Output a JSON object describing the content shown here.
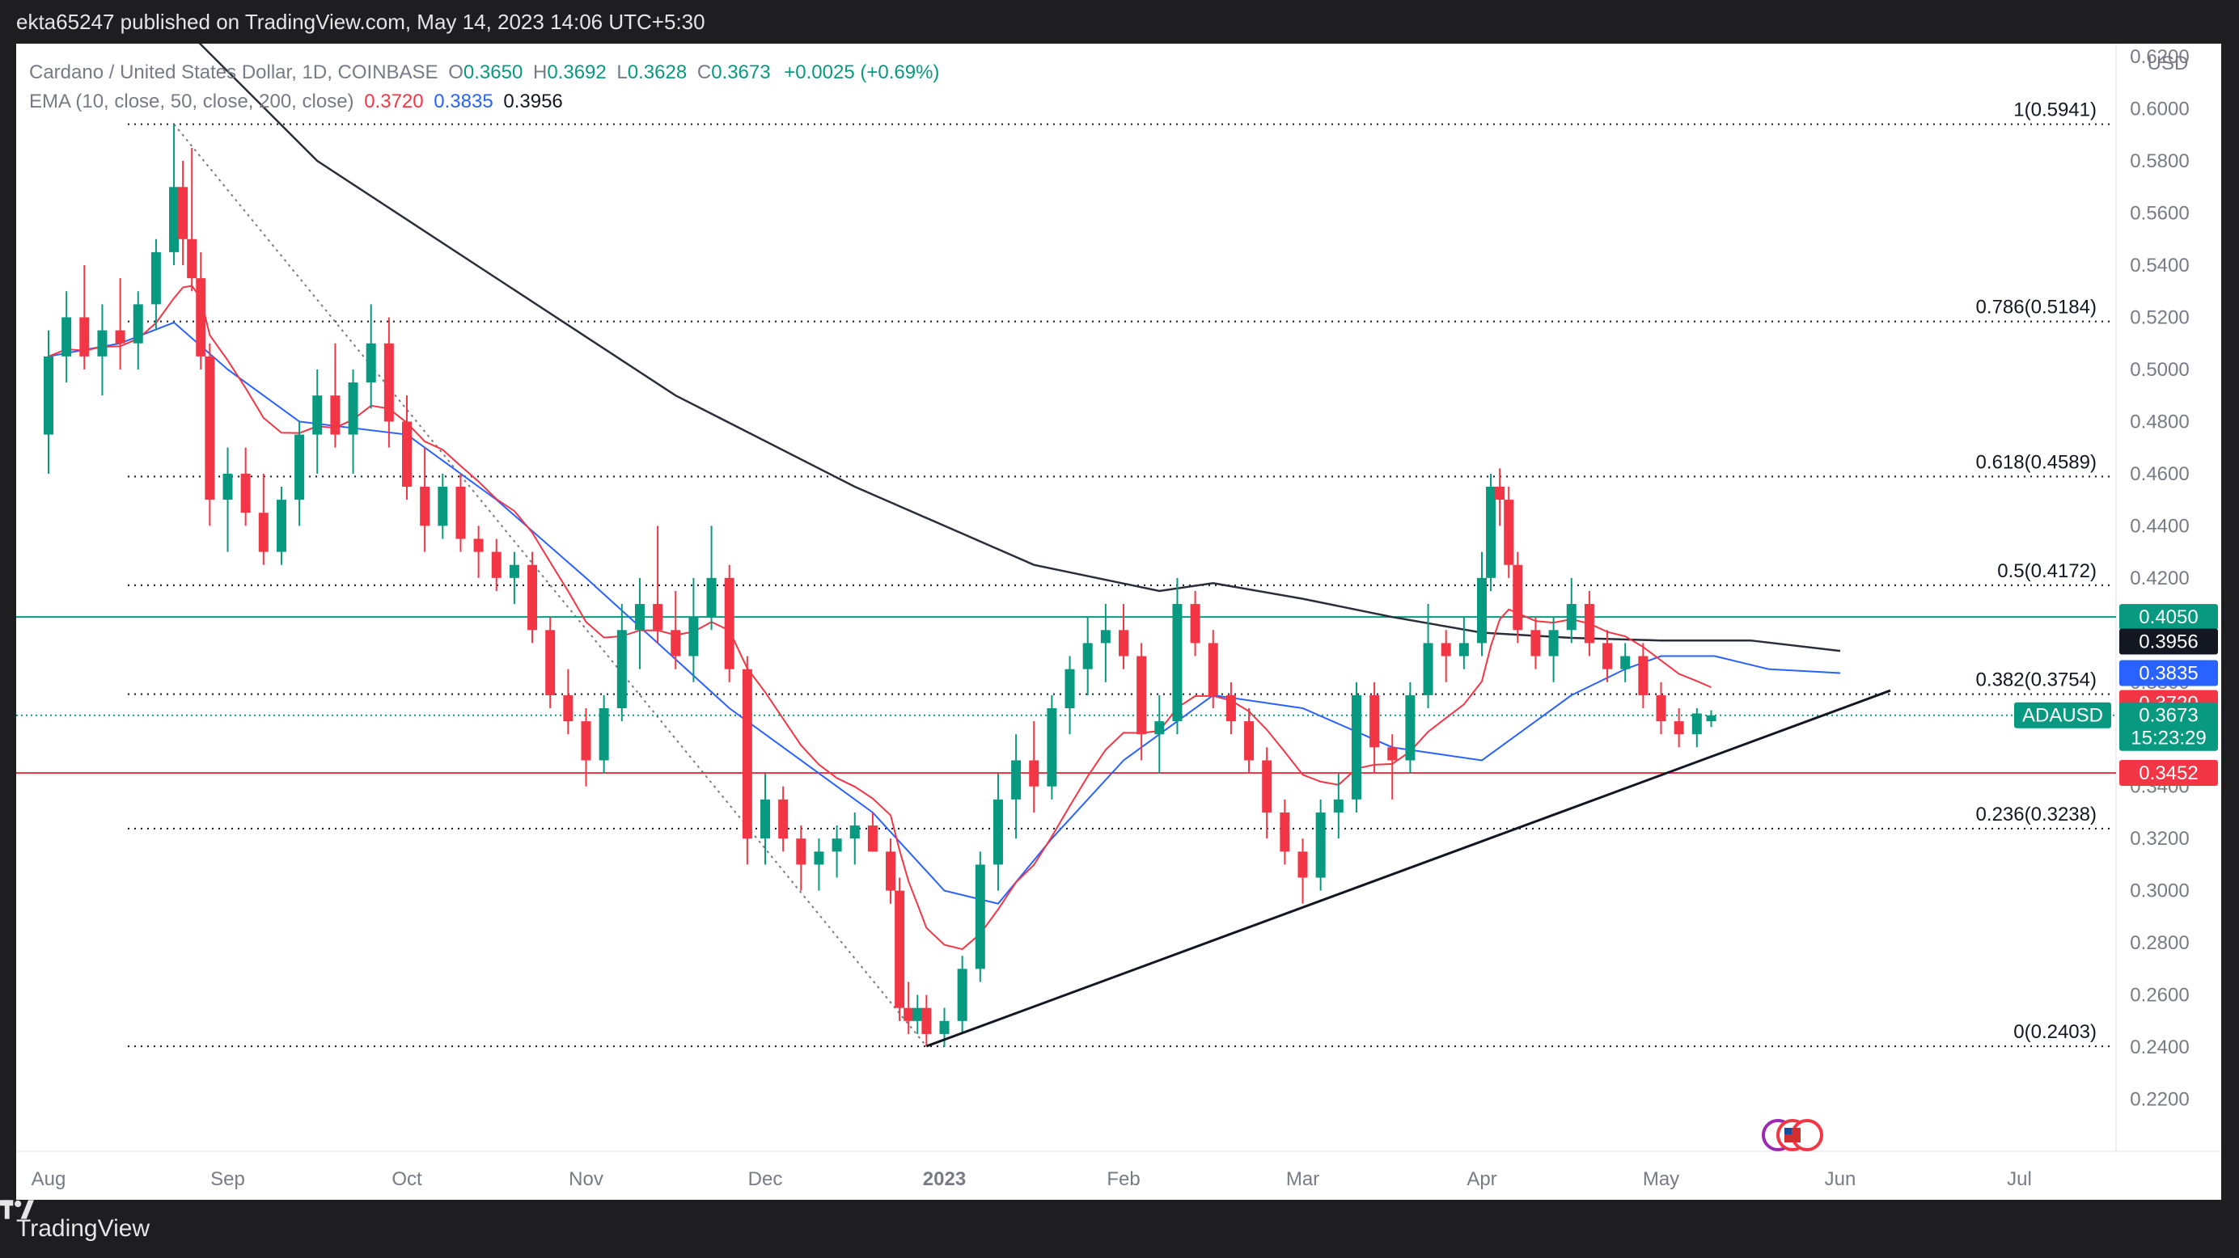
{
  "header": {
    "text": "ekta65247 published on TradingView.com, May 14, 2023 14:06 UTC+5:30"
  },
  "footer": {
    "brand": "TradingView"
  },
  "legend": {
    "symbol": "Cardano / United States Dollar, 1D, COINBASE",
    "open_label": "O",
    "open": "0.3650",
    "high_label": "H",
    "high": "0.3692",
    "low_label": "L",
    "low": "0.3628",
    "close_label": "C",
    "close": "0.3673",
    "change": "+0.0025 (+0.69%)",
    "ema_label": "EMA (10, close, 50, close, 200, close)",
    "ema10": "0.3720",
    "ema50": "0.3835",
    "ema200": "0.3956"
  },
  "colors": {
    "up": "#089981",
    "down": "#f23645",
    "ema10": "#f23645",
    "ema50": "#2962ff",
    "ema200": "#2a2e39",
    "support": "#f23645",
    "resistance": "#089981"
  },
  "chart_data": {
    "type": "candlestick",
    "currency": "USD",
    "y_ticks": [
      "0.6200",
      "0.6000",
      "0.5800",
      "0.5600",
      "0.5400",
      "0.5200",
      "0.5000",
      "0.4800",
      "0.4600",
      "0.4400",
      "0.4200",
      "0.4000",
      "0.3800",
      "0.3600",
      "0.3400",
      "0.3200",
      "0.3000",
      "0.2800",
      "0.2600",
      "0.2400",
      "0.2200"
    ],
    "ylim": [
      0.2,
      0.625
    ],
    "x_ticks": [
      "Aug",
      "Sep",
      "Oct",
      "Nov",
      "Dec",
      "2023",
      "Feb",
      "Mar",
      "Apr",
      "May",
      "Jun",
      "Jul"
    ],
    "fib_levels": [
      {
        "label": "1(0.5941)",
        "value": 0.5941
      },
      {
        "label": "0.786(0.5184)",
        "value": 0.5184
      },
      {
        "label": "0.618(0.4589)",
        "value": 0.4589
      },
      {
        "label": "0.5(0.4172)",
        "value": 0.4172
      },
      {
        "label": "0.382(0.3754)",
        "value": 0.3754
      },
      {
        "label": "0.236(0.3238)",
        "value": 0.3238
      },
      {
        "label": "0(0.2403)",
        "value": 0.2403
      }
    ],
    "horizontal_lines": [
      {
        "value": 0.405,
        "label": "0.4050",
        "kind": "resistance"
      },
      {
        "value": 0.3452,
        "label": "0.3452",
        "kind": "support"
      }
    ],
    "price_tags": [
      {
        "label": "0.4050",
        "value": 0.405,
        "color": "#089981"
      },
      {
        "label": "0.3956",
        "value": 0.3956,
        "color": "#131722"
      },
      {
        "label": "0.3835",
        "value": 0.3835,
        "color": "#2962ff"
      },
      {
        "label": "0.3720",
        "value": 0.372,
        "color": "#f23645"
      },
      {
        "label": "0.3452",
        "value": 0.3452,
        "color": "#f23645"
      }
    ],
    "last_price": {
      "symbol": "ADAUSD",
      "price": "0.3673",
      "countdown": "15:23:29",
      "value": 0.3673
    },
    "trendline": {
      "from_month": 4.9,
      "from_value": 0.2403,
      "to_month": 10.28,
      "to_value": 0.3768
    },
    "ema200": {
      "x": [
        0.7,
        1.5,
        2.5,
        3.5,
        4.5,
        5.5,
        6.2,
        6.5,
        7,
        7.5,
        8,
        8.5,
        9,
        9.5,
        10.0
      ],
      "y": [
        0.635,
        0.58,
        0.535,
        0.49,
        0.455,
        0.425,
        0.415,
        0.418,
        0.412,
        0.405,
        0.399,
        0.397,
        0.396,
        0.396,
        0.392
      ]
    },
    "ema50": {
      "x": [
        0,
        0.4,
        0.7,
        1,
        1.4,
        2,
        2.5,
        3,
        3.4,
        3.8,
        4.2,
        4.6,
        5,
        5.3,
        5.6,
        6,
        6.5,
        7,
        7.5,
        8,
        8.5,
        8.8,
        9,
        9.3,
        9.6,
        10.0
      ],
      "y": [
        0.505,
        0.51,
        0.518,
        0.5,
        0.48,
        0.475,
        0.45,
        0.42,
        0.395,
        0.37,
        0.35,
        0.33,
        0.3,
        0.295,
        0.32,
        0.35,
        0.375,
        0.37,
        0.355,
        0.35,
        0.375,
        0.385,
        0.39,
        0.39,
        0.385,
        0.3835
      ]
    },
    "candles": [
      {
        "m": 0.0,
        "o": 0.475,
        "h": 0.515,
        "l": 0.46,
        "c": 0.505
      },
      {
        "m": 0.1,
        "o": 0.505,
        "h": 0.53,
        "l": 0.495,
        "c": 0.52
      },
      {
        "m": 0.2,
        "o": 0.52,
        "h": 0.54,
        "l": 0.5,
        "c": 0.505
      },
      {
        "m": 0.3,
        "o": 0.505,
        "h": 0.525,
        "l": 0.49,
        "c": 0.515
      },
      {
        "m": 0.4,
        "o": 0.515,
        "h": 0.535,
        "l": 0.5,
        "c": 0.51
      },
      {
        "m": 0.5,
        "o": 0.51,
        "h": 0.53,
        "l": 0.5,
        "c": 0.525
      },
      {
        "m": 0.6,
        "o": 0.525,
        "h": 0.55,
        "l": 0.515,
        "c": 0.545
      },
      {
        "m": 0.7,
        "o": 0.545,
        "h": 0.594,
        "l": 0.54,
        "c": 0.57
      },
      {
        "m": 0.75,
        "o": 0.57,
        "h": 0.58,
        "l": 0.54,
        "c": 0.55
      },
      {
        "m": 0.8,
        "o": 0.55,
        "h": 0.585,
        "l": 0.53,
        "c": 0.535
      },
      {
        "m": 0.85,
        "o": 0.535,
        "h": 0.545,
        "l": 0.5,
        "c": 0.505
      },
      {
        "m": 0.9,
        "o": 0.505,
        "h": 0.51,
        "l": 0.44,
        "c": 0.45
      },
      {
        "m": 1.0,
        "o": 0.45,
        "h": 0.47,
        "l": 0.43,
        "c": 0.46
      },
      {
        "m": 1.1,
        "o": 0.46,
        "h": 0.47,
        "l": 0.44,
        "c": 0.445
      },
      {
        "m": 1.2,
        "o": 0.445,
        "h": 0.46,
        "l": 0.425,
        "c": 0.43
      },
      {
        "m": 1.3,
        "o": 0.43,
        "h": 0.455,
        "l": 0.425,
        "c": 0.45
      },
      {
        "m": 1.4,
        "o": 0.45,
        "h": 0.48,
        "l": 0.44,
        "c": 0.475
      },
      {
        "m": 1.5,
        "o": 0.475,
        "h": 0.5,
        "l": 0.46,
        "c": 0.49
      },
      {
        "m": 1.6,
        "o": 0.49,
        "h": 0.51,
        "l": 0.47,
        "c": 0.475
      },
      {
        "m": 1.7,
        "o": 0.475,
        "h": 0.5,
        "l": 0.46,
        "c": 0.495
      },
      {
        "m": 1.8,
        "o": 0.495,
        "h": 0.525,
        "l": 0.485,
        "c": 0.51
      },
      {
        "m": 1.9,
        "o": 0.51,
        "h": 0.52,
        "l": 0.47,
        "c": 0.48
      },
      {
        "m": 2.0,
        "o": 0.48,
        "h": 0.49,
        "l": 0.45,
        "c": 0.455
      },
      {
        "m": 2.1,
        "o": 0.455,
        "h": 0.47,
        "l": 0.43,
        "c": 0.44
      },
      {
        "m": 2.2,
        "o": 0.44,
        "h": 0.46,
        "l": 0.435,
        "c": 0.455
      },
      {
        "m": 2.3,
        "o": 0.455,
        "h": 0.46,
        "l": 0.43,
        "c": 0.435
      },
      {
        "m": 2.4,
        "o": 0.435,
        "h": 0.44,
        "l": 0.42,
        "c": 0.43
      },
      {
        "m": 2.5,
        "o": 0.43,
        "h": 0.435,
        "l": 0.415,
        "c": 0.42
      },
      {
        "m": 2.6,
        "o": 0.42,
        "h": 0.43,
        "l": 0.41,
        "c": 0.425
      },
      {
        "m": 2.7,
        "o": 0.425,
        "h": 0.43,
        "l": 0.395,
        "c": 0.4
      },
      {
        "m": 2.8,
        "o": 0.4,
        "h": 0.405,
        "l": 0.37,
        "c": 0.375
      },
      {
        "m": 2.9,
        "o": 0.375,
        "h": 0.385,
        "l": 0.36,
        "c": 0.365
      },
      {
        "m": 3.0,
        "o": 0.365,
        "h": 0.37,
        "l": 0.34,
        "c": 0.35
      },
      {
        "m": 3.1,
        "o": 0.35,
        "h": 0.375,
        "l": 0.345,
        "c": 0.37
      },
      {
        "m": 3.2,
        "o": 0.37,
        "h": 0.41,
        "l": 0.365,
        "c": 0.4
      },
      {
        "m": 3.3,
        "o": 0.4,
        "h": 0.42,
        "l": 0.385,
        "c": 0.41
      },
      {
        "m": 3.4,
        "o": 0.41,
        "h": 0.44,
        "l": 0.395,
        "c": 0.4
      },
      {
        "m": 3.5,
        "o": 0.4,
        "h": 0.415,
        "l": 0.385,
        "c": 0.39
      },
      {
        "m": 3.6,
        "o": 0.39,
        "h": 0.42,
        "l": 0.38,
        "c": 0.405
      },
      {
        "m": 3.7,
        "o": 0.405,
        "h": 0.44,
        "l": 0.4,
        "c": 0.42
      },
      {
        "m": 3.8,
        "o": 0.42,
        "h": 0.425,
        "l": 0.38,
        "c": 0.385
      },
      {
        "m": 3.9,
        "o": 0.385,
        "h": 0.39,
        "l": 0.31,
        "c": 0.32
      },
      {
        "m": 4.0,
        "o": 0.32,
        "h": 0.345,
        "l": 0.31,
        "c": 0.335
      },
      {
        "m": 4.1,
        "o": 0.335,
        "h": 0.34,
        "l": 0.315,
        "c": 0.32
      },
      {
        "m": 4.2,
        "o": 0.32,
        "h": 0.325,
        "l": 0.3,
        "c": 0.31
      },
      {
        "m": 4.3,
        "o": 0.31,
        "h": 0.32,
        "l": 0.3,
        "c": 0.315
      },
      {
        "m": 4.4,
        "o": 0.315,
        "h": 0.325,
        "l": 0.305,
        "c": 0.32
      },
      {
        "m": 4.5,
        "o": 0.32,
        "h": 0.33,
        "l": 0.31,
        "c": 0.325
      },
      {
        "m": 4.6,
        "o": 0.325,
        "h": 0.33,
        "l": 0.315,
        "c": 0.315
      },
      {
        "m": 4.7,
        "o": 0.315,
        "h": 0.32,
        "l": 0.295,
        "c": 0.3
      },
      {
        "m": 4.75,
        "o": 0.3,
        "h": 0.305,
        "l": 0.25,
        "c": 0.255
      },
      {
        "m": 4.8,
        "o": 0.255,
        "h": 0.265,
        "l": 0.245,
        "c": 0.25
      },
      {
        "m": 4.85,
        "o": 0.25,
        "h": 0.26,
        "l": 0.245,
        "c": 0.255
      },
      {
        "m": 4.9,
        "o": 0.255,
        "h": 0.26,
        "l": 0.2403,
        "c": 0.245
      },
      {
        "m": 5.0,
        "o": 0.245,
        "h": 0.255,
        "l": 0.24,
        "c": 0.25
      },
      {
        "m": 5.1,
        "o": 0.25,
        "h": 0.275,
        "l": 0.245,
        "c": 0.27
      },
      {
        "m": 5.2,
        "o": 0.27,
        "h": 0.315,
        "l": 0.265,
        "c": 0.31
      },
      {
        "m": 5.3,
        "o": 0.31,
        "h": 0.345,
        "l": 0.3,
        "c": 0.335
      },
      {
        "m": 5.4,
        "o": 0.335,
        "h": 0.36,
        "l": 0.32,
        "c": 0.35
      },
      {
        "m": 5.5,
        "o": 0.35,
        "h": 0.365,
        "l": 0.33,
        "c": 0.34
      },
      {
        "m": 5.6,
        "o": 0.34,
        "h": 0.375,
        "l": 0.335,
        "c": 0.37
      },
      {
        "m": 5.7,
        "o": 0.37,
        "h": 0.39,
        "l": 0.36,
        "c": 0.385
      },
      {
        "m": 5.8,
        "o": 0.385,
        "h": 0.405,
        "l": 0.375,
        "c": 0.395
      },
      {
        "m": 5.9,
        "o": 0.395,
        "h": 0.41,
        "l": 0.38,
        "c": 0.4
      },
      {
        "m": 6.0,
        "o": 0.4,
        "h": 0.41,
        "l": 0.385,
        "c": 0.39
      },
      {
        "m": 6.1,
        "o": 0.39,
        "h": 0.395,
        "l": 0.35,
        "c": 0.36
      },
      {
        "m": 6.2,
        "o": 0.36,
        "h": 0.375,
        "l": 0.345,
        "c": 0.365
      },
      {
        "m": 6.3,
        "o": 0.365,
        "h": 0.42,
        "l": 0.36,
        "c": 0.41
      },
      {
        "m": 6.4,
        "o": 0.41,
        "h": 0.415,
        "l": 0.39,
        "c": 0.395
      },
      {
        "m": 6.5,
        "o": 0.395,
        "h": 0.4,
        "l": 0.37,
        "c": 0.375
      },
      {
        "m": 6.6,
        "o": 0.375,
        "h": 0.38,
        "l": 0.36,
        "c": 0.365
      },
      {
        "m": 6.7,
        "o": 0.365,
        "h": 0.37,
        "l": 0.345,
        "c": 0.35
      },
      {
        "m": 6.8,
        "o": 0.35,
        "h": 0.355,
        "l": 0.32,
        "c": 0.33
      },
      {
        "m": 6.9,
        "o": 0.33,
        "h": 0.335,
        "l": 0.31,
        "c": 0.315
      },
      {
        "m": 7.0,
        "o": 0.315,
        "h": 0.32,
        "l": 0.295,
        "c": 0.305
      },
      {
        "m": 7.1,
        "o": 0.305,
        "h": 0.335,
        "l": 0.3,
        "c": 0.33
      },
      {
        "m": 7.2,
        "o": 0.33,
        "h": 0.345,
        "l": 0.32,
        "c": 0.335
      },
      {
        "m": 7.3,
        "o": 0.335,
        "h": 0.38,
        "l": 0.33,
        "c": 0.375
      },
      {
        "m": 7.4,
        "o": 0.375,
        "h": 0.38,
        "l": 0.345,
        "c": 0.355
      },
      {
        "m": 7.5,
        "o": 0.355,
        "h": 0.36,
        "l": 0.335,
        "c": 0.35
      },
      {
        "m": 7.6,
        "o": 0.35,
        "h": 0.38,
        "l": 0.345,
        "c": 0.375
      },
      {
        "m": 7.7,
        "o": 0.375,
        "h": 0.41,
        "l": 0.37,
        "c": 0.395
      },
      {
        "m": 7.8,
        "o": 0.395,
        "h": 0.4,
        "l": 0.38,
        "c": 0.39
      },
      {
        "m": 7.9,
        "o": 0.39,
        "h": 0.405,
        "l": 0.385,
        "c": 0.395
      },
      {
        "m": 8.0,
        "o": 0.395,
        "h": 0.43,
        "l": 0.39,
        "c": 0.42
      },
      {
        "m": 8.05,
        "o": 0.42,
        "h": 0.46,
        "l": 0.415,
        "c": 0.455
      },
      {
        "m": 8.1,
        "o": 0.455,
        "h": 0.462,
        "l": 0.44,
        "c": 0.45
      },
      {
        "m": 8.15,
        "o": 0.45,
        "h": 0.455,
        "l": 0.42,
        "c": 0.425
      },
      {
        "m": 8.2,
        "o": 0.425,
        "h": 0.43,
        "l": 0.395,
        "c": 0.4
      },
      {
        "m": 8.3,
        "o": 0.4,
        "h": 0.405,
        "l": 0.385,
        "c": 0.39
      },
      {
        "m": 8.4,
        "o": 0.39,
        "h": 0.405,
        "l": 0.38,
        "c": 0.4
      },
      {
        "m": 8.5,
        "o": 0.4,
        "h": 0.42,
        "l": 0.395,
        "c": 0.41
      },
      {
        "m": 8.6,
        "o": 0.41,
        "h": 0.415,
        "l": 0.39,
        "c": 0.395
      },
      {
        "m": 8.7,
        "o": 0.395,
        "h": 0.4,
        "l": 0.38,
        "c": 0.385
      },
      {
        "m": 8.8,
        "o": 0.385,
        "h": 0.395,
        "l": 0.38,
        "c": 0.39
      },
      {
        "m": 8.9,
        "o": 0.39,
        "h": 0.395,
        "l": 0.37,
        "c": 0.375
      },
      {
        "m": 9.0,
        "o": 0.375,
        "h": 0.38,
        "l": 0.36,
        "c": 0.365
      },
      {
        "m": 9.1,
        "o": 0.365,
        "h": 0.37,
        "l": 0.355,
        "c": 0.36
      },
      {
        "m": 9.2,
        "o": 0.36,
        "h": 0.37,
        "l": 0.355,
        "c": 0.368
      },
      {
        "m": 9.28,
        "o": 0.365,
        "h": 0.3692,
        "l": 0.3628,
        "c": 0.3673
      }
    ]
  }
}
